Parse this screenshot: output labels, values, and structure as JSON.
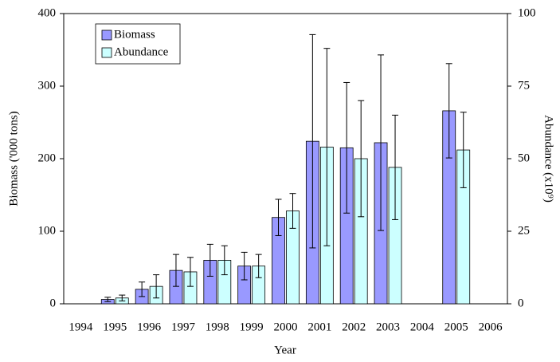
{
  "chart_data": {
    "type": "bar",
    "x_label": "Year",
    "y_label": "Biomass ('000 tons)",
    "y2_label": "Abundance (x10⁹)",
    "categories": [
      "1994",
      "1995",
      "1996",
      "1997",
      "1998",
      "1999",
      "2000",
      "2001",
      "2002",
      "2003",
      "2004",
      "2005",
      "2006"
    ],
    "series": [
      {
        "name": "Biomass",
        "color": "#9999ff",
        "axis": "y",
        "values": [
          null,
          6,
          20,
          46,
          60,
          52,
          119,
          224,
          215,
          222,
          null,
          266,
          null
        ],
        "errors": [
          null,
          3,
          10,
          22,
          22,
          19,
          25,
          147,
          90,
          121,
          null,
          65,
          null
        ]
      },
      {
        "name": "Abundance",
        "color": "#ccffff",
        "axis": "y2",
        "values": [
          null,
          2,
          6,
          11,
          15,
          13,
          32,
          54,
          50,
          47,
          null,
          53,
          null
        ],
        "errors": [
          null,
          1,
          4,
          5,
          5,
          4,
          6,
          34,
          20,
          18,
          null,
          13,
          null
        ]
      }
    ],
    "ylim": [
      0,
      400
    ],
    "yticks": [
      0,
      100,
      200,
      300,
      400
    ],
    "y2lim": [
      0,
      100
    ],
    "y2ticks": [
      0,
      25,
      50,
      75,
      100
    ],
    "legend": "top-left"
  }
}
